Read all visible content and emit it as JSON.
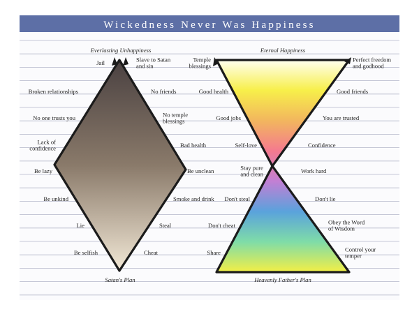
{
  "banner": {
    "title": "Wickedness Never Was Happiness",
    "color": "#5d6fa6"
  },
  "colors": {
    "paper": "#fbfbfd",
    "rule": "#b3b6c9",
    "outline": "#1b1b1b",
    "dark_gradient": [
      "#4a4141",
      "#8a7a6a",
      "#f2e8d6"
    ],
    "bright_gradient": [
      "#fffff0",
      "#f7ef4a",
      "#f2b65e",
      "#f47a8f",
      "#c27fd4",
      "#5aa2dc",
      "#7fdca8",
      "#f3ef46"
    ]
  },
  "left_diagram": {
    "top_caption": "Everlasting Unhappiness",
    "bottom_caption": "Satan's Plan",
    "left_labels": [
      [
        "Jail"
      ],
      [
        "Broken relationships"
      ],
      [
        "No one trusts you"
      ],
      [
        "Lack of",
        "confidence"
      ],
      [
        "Be lazy"
      ],
      [
        "Be unkind"
      ],
      [
        "Lie"
      ],
      [
        "Be selfish"
      ]
    ],
    "right_labels": [
      [
        "Slave to Satan",
        "and sin"
      ],
      [
        "No friends"
      ],
      [
        "No temple",
        "blessings"
      ],
      [
        "Bad health"
      ],
      [
        "Be unclean"
      ],
      [
        "Smoke and drink"
      ],
      [
        "Steal"
      ],
      [
        "Cheat"
      ]
    ]
  },
  "right_diagram": {
    "top_caption": "Eternal Happiness",
    "bottom_caption": "Heavenly Father's Plan",
    "left_labels": [
      [
        "Temple",
        "blessings"
      ],
      [
        "Good health"
      ],
      [
        "Good jobs"
      ],
      [
        "Self-love"
      ],
      [
        "Stay pure",
        "and clean"
      ],
      [
        "Don't steal"
      ],
      [
        "Don't cheat"
      ],
      [
        "Share"
      ]
    ],
    "right_labels": [
      [
        "Perfect freedom",
        "and godhood"
      ],
      [
        "Good friends"
      ],
      [
        "You are trusted"
      ],
      [
        "Confidence"
      ],
      [
        "Work hard"
      ],
      [
        "Don't lie"
      ],
      [
        "Obey the Word",
        "of Wisdom"
      ],
      [
        "Control your",
        "temper"
      ]
    ]
  }
}
